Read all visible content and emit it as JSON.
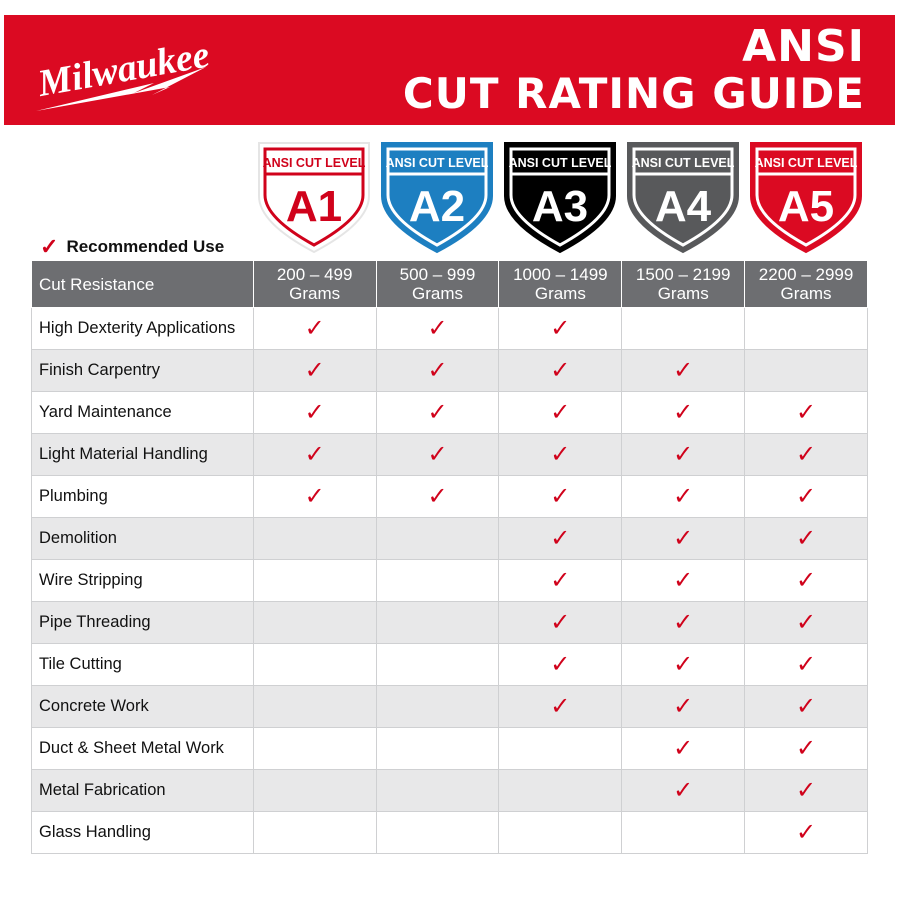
{
  "brand": {
    "logo_text": "Milwaukee",
    "color": "#db0a22"
  },
  "title": {
    "line1": "ANSI",
    "line2": "CUT RATING GUIDE"
  },
  "legend": {
    "icon": "check-icon",
    "label": "Recommended Use"
  },
  "levels": [
    {
      "top": "ANSI CUT LEVEL",
      "code": "A1",
      "range": "200 – 499",
      "unit": "Grams",
      "color": "#ffffff",
      "accent": "#d0021b"
    },
    {
      "top": "ANSI CUT LEVEL",
      "code": "A2",
      "range": "500 – 999",
      "unit": "Grams",
      "color": "#1d7fc1",
      "accent": "#ffffff"
    },
    {
      "top": "ANSI CUT LEVEL",
      "code": "A3",
      "range": "1000 – 1499",
      "unit": "Grams",
      "color": "#000000",
      "accent": "#ffffff"
    },
    {
      "top": "ANSI CUT LEVEL",
      "code": "A4",
      "range": "1500 – 2199",
      "unit": "Grams",
      "color": "#58595b",
      "accent": "#ffffff"
    },
    {
      "top": "ANSI CUT LEVEL",
      "code": "A5",
      "range": "2200 – 2999",
      "unit": "Grams",
      "color": "#db0a22",
      "accent": "#ffffff"
    }
  ],
  "table": {
    "header": "Cut Resistance",
    "check_symbol": "✓",
    "rows": [
      {
        "label": "High Dexterity Applications",
        "checks": [
          true,
          true,
          true,
          false,
          false
        ]
      },
      {
        "label": "Finish Carpentry",
        "checks": [
          true,
          true,
          true,
          true,
          false
        ]
      },
      {
        "label": "Yard Maintenance",
        "checks": [
          true,
          true,
          true,
          true,
          true
        ]
      },
      {
        "label": "Light Material Handling",
        "checks": [
          true,
          true,
          true,
          true,
          true
        ]
      },
      {
        "label": "Plumbing",
        "checks": [
          true,
          true,
          true,
          true,
          true
        ]
      },
      {
        "label": "Demolition",
        "checks": [
          false,
          false,
          true,
          true,
          true
        ]
      },
      {
        "label": "Wire Stripping",
        "checks": [
          false,
          false,
          true,
          true,
          true
        ]
      },
      {
        "label": "Pipe Threading",
        "checks": [
          false,
          false,
          true,
          true,
          true
        ]
      },
      {
        "label": "Tile Cutting",
        "checks": [
          false,
          false,
          true,
          true,
          true
        ]
      },
      {
        "label": "Concrete Work",
        "checks": [
          false,
          false,
          true,
          true,
          true
        ]
      },
      {
        "label": "Duct & Sheet Metal Work",
        "checks": [
          false,
          false,
          false,
          true,
          true
        ]
      },
      {
        "label": "Metal Fabrication",
        "checks": [
          false,
          false,
          false,
          true,
          true
        ]
      },
      {
        "label": "Glass Handling",
        "checks": [
          false,
          false,
          false,
          false,
          true
        ]
      }
    ]
  }
}
